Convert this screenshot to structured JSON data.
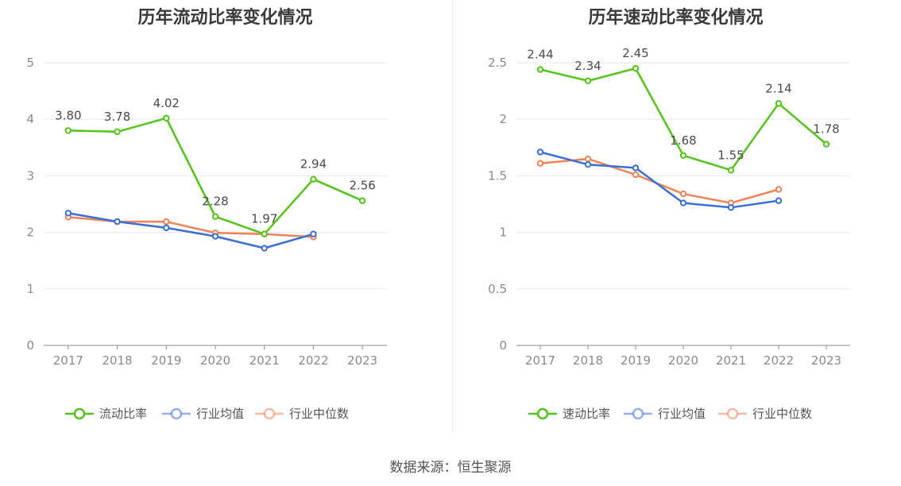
{
  "source": "数据来源：恒生聚源",
  "chart_data": [
    {
      "type": "line",
      "title": "历年流动比率变化情况",
      "categories": [
        "2017",
        "2018",
        "2019",
        "2020",
        "2021",
        "2022",
        "2023"
      ],
      "ylim": [
        0,
        5
      ],
      "yticks": [
        0,
        1,
        2,
        3,
        4,
        5
      ],
      "grid": true,
      "legend": "bottom",
      "series": [
        {
          "name": "流动比率",
          "color": "#52c41a",
          "values": [
            3.8,
            3.78,
            4.02,
            2.28,
            1.97,
            2.94,
            2.56
          ],
          "labels": [
            "3.80",
            "3.78",
            "4.02",
            "2.28",
            "1.97",
            "2.94",
            "2.56"
          ]
        },
        {
          "name": "行业均值",
          "color": "#3a6fd8",
          "values": [
            2.34,
            2.19,
            2.08,
            1.93,
            1.72,
            1.97,
            null
          ]
        },
        {
          "name": "行业中位数",
          "color": "#f08255",
          "values": [
            2.27,
            2.19,
            2.19,
            1.99,
            1.97,
            1.92,
            null
          ]
        }
      ]
    },
    {
      "type": "line",
      "title": "历年速动比率变化情况",
      "categories": [
        "2017",
        "2018",
        "2019",
        "2020",
        "2021",
        "2022",
        "2023"
      ],
      "ylim": [
        0,
        2.5
      ],
      "yticks": [
        "0",
        "0.5",
        "1",
        "1.5",
        "2",
        "2.5"
      ],
      "grid": true,
      "legend": "bottom",
      "series": [
        {
          "name": "速动比率",
          "color": "#52c41a",
          "values": [
            2.44,
            2.34,
            2.45,
            1.68,
            1.55,
            2.14,
            1.78
          ],
          "labels": [
            "2.44",
            "2.34",
            "2.45",
            "1.68",
            "1.55",
            "2.14",
            "1.78"
          ]
        },
        {
          "name": "行业均值",
          "color": "#3a6fd8",
          "values": [
            1.71,
            1.6,
            1.57,
            1.26,
            1.22,
            1.28,
            null
          ]
        },
        {
          "name": "行业中位数",
          "color": "#f08255",
          "values": [
            1.61,
            1.65,
            1.51,
            1.34,
            1.26,
            1.38,
            null
          ]
        }
      ]
    }
  ]
}
